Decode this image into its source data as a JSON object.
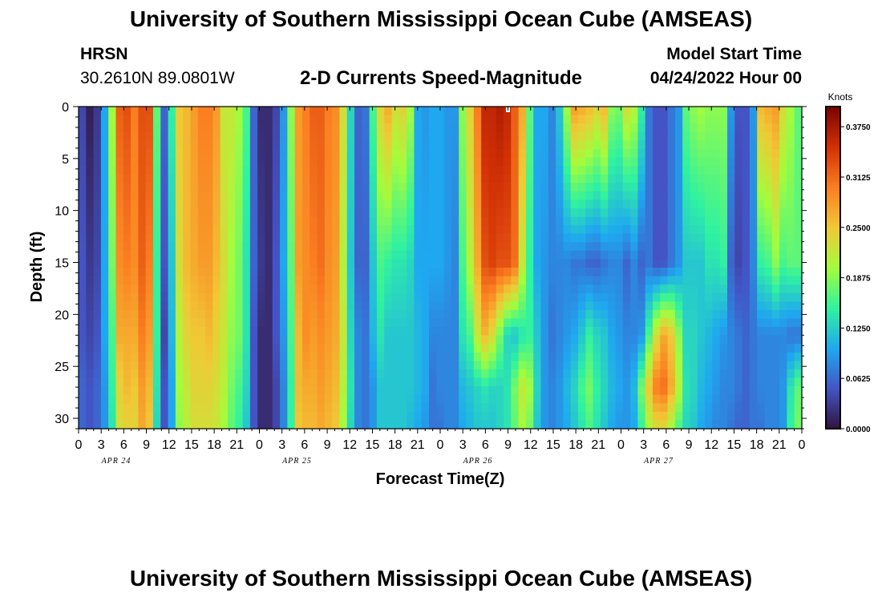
{
  "titles": {
    "top": "University of Southern Mississippi Ocean Cube (AMSEAS)",
    "bottom": "University of Southern Mississippi Ocean Cube (AMSEAS)"
  },
  "station": {
    "name": "HRSN",
    "coords": "30.2610N  89.0801W"
  },
  "model": {
    "label": "Model Start Time",
    "start": "04/24/2022 Hour 00"
  },
  "colorbar": {
    "unit": "Knots",
    "ticks": [
      "0.0000",
      "0.0625",
      "0.1250",
      "0.1875",
      "0.2500",
      "0.3125",
      "0.3750"
    ],
    "colors": [
      "#30123b",
      "#4454c4",
      "#1fa8f0",
      "#30f2a0",
      "#a4fc3c",
      "#f1c836",
      "#fb7e21",
      "#d23105",
      "#7a0403"
    ]
  },
  "chart_data": {
    "type": "heatmap",
    "title": "2-D Currents Speed-Magnitude",
    "xlabel": "Forecast Time(Z)",
    "ylabel": "Depth (ft)",
    "unit": "Knots",
    "x_range_hours": [
      0,
      96
    ],
    "ylim": [
      0,
      31
    ],
    "x_tick_labels": [
      "0",
      "3",
      "6",
      "9",
      "12",
      "15",
      "18",
      "21",
      "0",
      "3",
      "6",
      "9",
      "12",
      "15",
      "18",
      "21",
      "0",
      "3",
      "6",
      "9",
      "12",
      "15",
      "18",
      "21",
      "0",
      "3",
      "6",
      "9",
      "12",
      "15",
      "18",
      "21",
      "0"
    ],
    "y_ticks": [
      0,
      5,
      10,
      15,
      20,
      25,
      30
    ],
    "day_labels": [
      "APR 24",
      "APR 25",
      "APR 26",
      "APR 27"
    ],
    "value_range": [
      0,
      0.4
    ],
    "profile_hours": [
      0,
      1,
      2,
      3,
      4,
      5,
      6,
      7,
      8,
      9,
      10,
      11,
      12,
      13,
      14,
      15,
      16,
      17,
      18,
      19,
      20,
      21,
      22,
      23,
      24,
      25,
      26,
      27,
      28,
      29,
      30,
      31,
      32,
      33,
      34,
      35,
      36,
      37,
      38,
      39,
      40,
      41,
      42,
      43,
      44,
      45,
      46,
      47,
      48,
      49,
      50,
      51,
      52,
      53,
      54,
      55,
      56,
      57,
      58,
      59,
      60,
      61,
      62,
      63,
      64,
      65,
      66,
      67,
      68,
      69,
      70,
      71,
      72,
      73,
      74,
      75,
      76,
      77,
      78,
      79,
      80,
      81,
      82,
      83,
      84,
      85,
      86,
      87,
      88,
      89,
      90,
      91,
      92,
      93,
      94,
      95,
      96
    ],
    "depth_levels_ft": [
      0,
      15,
      22,
      27,
      31
    ],
    "speed_knots_by_depth": [
      [
        0.04,
        0.01,
        0.03,
        0.1,
        0.2,
        0.32,
        0.33,
        0.3,
        0.33,
        0.33,
        0.17,
        0.06,
        0.15,
        0.25,
        0.26,
        0.28,
        0.3,
        0.3,
        0.28,
        0.22,
        0.22,
        0.2,
        0.16,
        0.06,
        0.02,
        0.02,
        0.04,
        0.09,
        0.19,
        0.28,
        0.3,
        0.32,
        0.32,
        0.3,
        0.29,
        0.23,
        0.13,
        0.06,
        0.07,
        0.16,
        0.24,
        0.27,
        0.23,
        0.24,
        0.2,
        0.1,
        0.09,
        0.1,
        0.1,
        0.09,
        0.09,
        0.19,
        0.24,
        0.3,
        0.36,
        0.36,
        0.37,
        0.36,
        0.32,
        0.27,
        0.17,
        0.1,
        0.1,
        0.08,
        0.12,
        0.2,
        0.28,
        0.27,
        0.26,
        0.24,
        0.26,
        0.19,
        0.18,
        0.23,
        0.21,
        0.15,
        0.07,
        0.05,
        0.05,
        0.07,
        0.09,
        0.17,
        0.19,
        0.2,
        0.19,
        0.19,
        0.19,
        0.09,
        0.05,
        0.05,
        0.09,
        0.26,
        0.27,
        0.28,
        0.23,
        0.2,
        0.17
      ],
      [
        0.05,
        0.03,
        0.04,
        0.1,
        0.18,
        0.29,
        0.3,
        0.29,
        0.32,
        0.3,
        0.15,
        0.05,
        0.12,
        0.23,
        0.26,
        0.27,
        0.28,
        0.28,
        0.26,
        0.23,
        0.2,
        0.18,
        0.14,
        0.06,
        0.03,
        0.02,
        0.05,
        0.1,
        0.17,
        0.28,
        0.29,
        0.3,
        0.31,
        0.29,
        0.28,
        0.21,
        0.12,
        0.06,
        0.06,
        0.12,
        0.16,
        0.15,
        0.14,
        0.14,
        0.13,
        0.1,
        0.1,
        0.1,
        0.1,
        0.09,
        0.08,
        0.16,
        0.21,
        0.27,
        0.33,
        0.34,
        0.33,
        0.33,
        0.31,
        0.22,
        0.15,
        0.1,
        0.09,
        0.08,
        0.08,
        0.08,
        0.07,
        0.07,
        0.06,
        0.06,
        0.07,
        0.08,
        0.08,
        0.06,
        0.08,
        0.06,
        0.07,
        0.05,
        0.05,
        0.07,
        0.09,
        0.12,
        0.12,
        0.12,
        0.14,
        0.14,
        0.15,
        0.06,
        0.04,
        0.05,
        0.08,
        0.15,
        0.16,
        0.19,
        0.16,
        0.17,
        0.17
      ],
      [
        0.05,
        0.04,
        0.05,
        0.1,
        0.16,
        0.27,
        0.27,
        0.27,
        0.3,
        0.28,
        0.15,
        0.04,
        0.11,
        0.21,
        0.24,
        0.25,
        0.25,
        0.26,
        0.24,
        0.22,
        0.19,
        0.18,
        0.14,
        0.05,
        0.02,
        0.02,
        0.05,
        0.09,
        0.16,
        0.26,
        0.29,
        0.28,
        0.29,
        0.28,
        0.27,
        0.22,
        0.13,
        0.08,
        0.07,
        0.11,
        0.14,
        0.12,
        0.12,
        0.12,
        0.12,
        0.11,
        0.1,
        0.08,
        0.08,
        0.08,
        0.08,
        0.14,
        0.16,
        0.22,
        0.26,
        0.23,
        0.18,
        0.13,
        0.12,
        0.14,
        0.15,
        0.12,
        0.09,
        0.07,
        0.08,
        0.09,
        0.1,
        0.12,
        0.15,
        0.13,
        0.12,
        0.1,
        0.09,
        0.08,
        0.08,
        0.09,
        0.16,
        0.23,
        0.27,
        0.25,
        0.19,
        0.13,
        0.13,
        0.12,
        0.11,
        0.1,
        0.09,
        0.08,
        0.07,
        0.06,
        0.07,
        0.08,
        0.08,
        0.08,
        0.08,
        0.07,
        0.07
      ],
      [
        0.06,
        0.05,
        0.06,
        0.09,
        0.15,
        0.24,
        0.26,
        0.25,
        0.28,
        0.26,
        0.14,
        0.05,
        0.1,
        0.2,
        0.22,
        0.24,
        0.24,
        0.24,
        0.23,
        0.21,
        0.18,
        0.16,
        0.13,
        0.05,
        0.02,
        0.02,
        0.04,
        0.08,
        0.15,
        0.26,
        0.27,
        0.27,
        0.28,
        0.27,
        0.26,
        0.21,
        0.14,
        0.08,
        0.07,
        0.09,
        0.12,
        0.12,
        0.12,
        0.12,
        0.12,
        0.11,
        0.1,
        0.07,
        0.08,
        0.08,
        0.08,
        0.11,
        0.12,
        0.13,
        0.14,
        0.13,
        0.13,
        0.14,
        0.18,
        0.22,
        0.2,
        0.13,
        0.09,
        0.08,
        0.09,
        0.11,
        0.13,
        0.16,
        0.18,
        0.15,
        0.13,
        0.11,
        0.1,
        0.09,
        0.11,
        0.18,
        0.25,
        0.3,
        0.31,
        0.27,
        0.21,
        0.14,
        0.13,
        0.11,
        0.1,
        0.09,
        0.08,
        0.08,
        0.07,
        0.06,
        0.07,
        0.08,
        0.08,
        0.08,
        0.09,
        0.14,
        0.17
      ],
      [
        0.06,
        0.05,
        0.06,
        0.09,
        0.14,
        0.23,
        0.24,
        0.24,
        0.27,
        0.25,
        0.13,
        0.05,
        0.1,
        0.19,
        0.21,
        0.23,
        0.23,
        0.23,
        0.22,
        0.2,
        0.17,
        0.15,
        0.12,
        0.05,
        0.02,
        0.02,
        0.04,
        0.08,
        0.15,
        0.25,
        0.26,
        0.26,
        0.27,
        0.26,
        0.25,
        0.2,
        0.13,
        0.08,
        0.07,
        0.09,
        0.12,
        0.12,
        0.12,
        0.12,
        0.11,
        0.1,
        0.09,
        0.07,
        0.07,
        0.08,
        0.08,
        0.1,
        0.11,
        0.12,
        0.12,
        0.12,
        0.13,
        0.14,
        0.17,
        0.2,
        0.18,
        0.12,
        0.09,
        0.08,
        0.09,
        0.1,
        0.12,
        0.14,
        0.16,
        0.14,
        0.12,
        0.1,
        0.09,
        0.09,
        0.1,
        0.15,
        0.2,
        0.23,
        0.23,
        0.2,
        0.16,
        0.13,
        0.12,
        0.1,
        0.09,
        0.08,
        0.08,
        0.07,
        0.06,
        0.06,
        0.07,
        0.07,
        0.08,
        0.08,
        0.09,
        0.15,
        0.18
      ]
    ]
  }
}
